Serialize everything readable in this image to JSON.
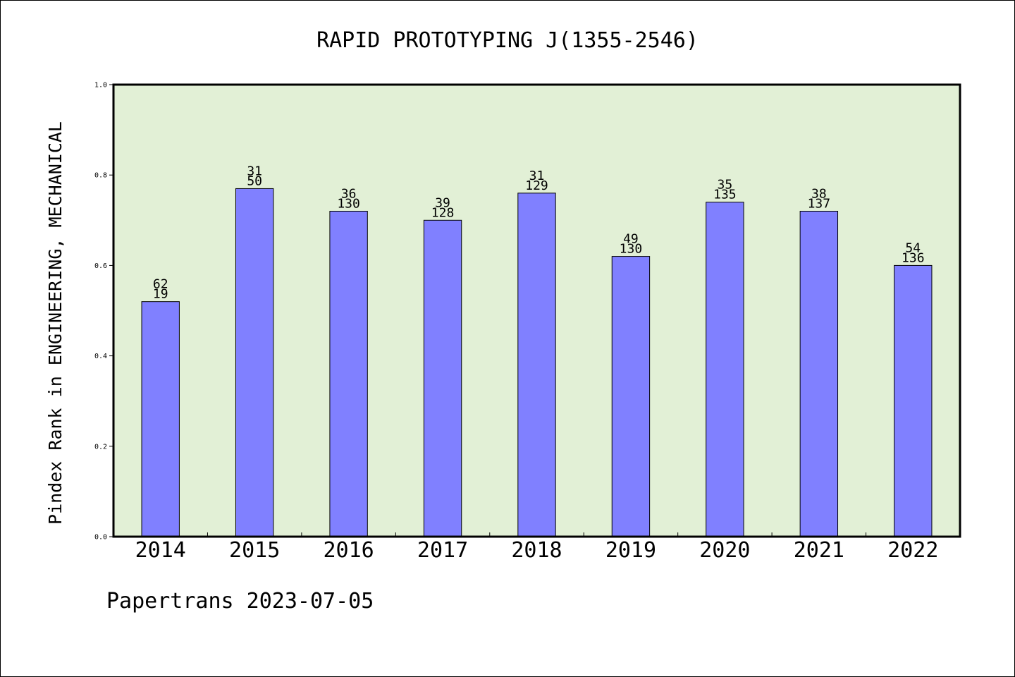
{
  "chart_data": {
    "type": "bar",
    "title": "RAPID PROTOTYPING J(1355-2546)",
    "ylabel": "Pindex Rank in ENGINEERING, MECHANICAL",
    "xlabel": "",
    "ylim": [
      0,
      1.0
    ],
    "yticks": [
      0.0,
      0.2,
      0.4,
      0.6,
      0.8,
      1.0
    ],
    "ytick_labels": [
      "0.0",
      "0.2",
      "0.4",
      "0.6",
      "0.8",
      "1.0"
    ],
    "categories": [
      "2014",
      "2015",
      "2016",
      "2017",
      "2018",
      "2019",
      "2020",
      "2021",
      "2022"
    ],
    "values": [
      0.52,
      0.77,
      0.72,
      0.7,
      0.76,
      0.62,
      0.74,
      0.72,
      0.6
    ],
    "labels_top": [
      "62",
      "31",
      "36",
      "39",
      "31",
      "49",
      "35",
      "38",
      "54"
    ],
    "labels_bottom": [
      "19",
      "50",
      "130",
      "128",
      "129",
      "130",
      "135",
      "137",
      "136"
    ],
    "grid": false,
    "colors": {
      "bar": "#8080ff",
      "plot_bg": "#e2f0d6",
      "bar_edge": "#000000"
    }
  },
  "footer": {
    "text": "Papertrans 2023-07-05"
  }
}
